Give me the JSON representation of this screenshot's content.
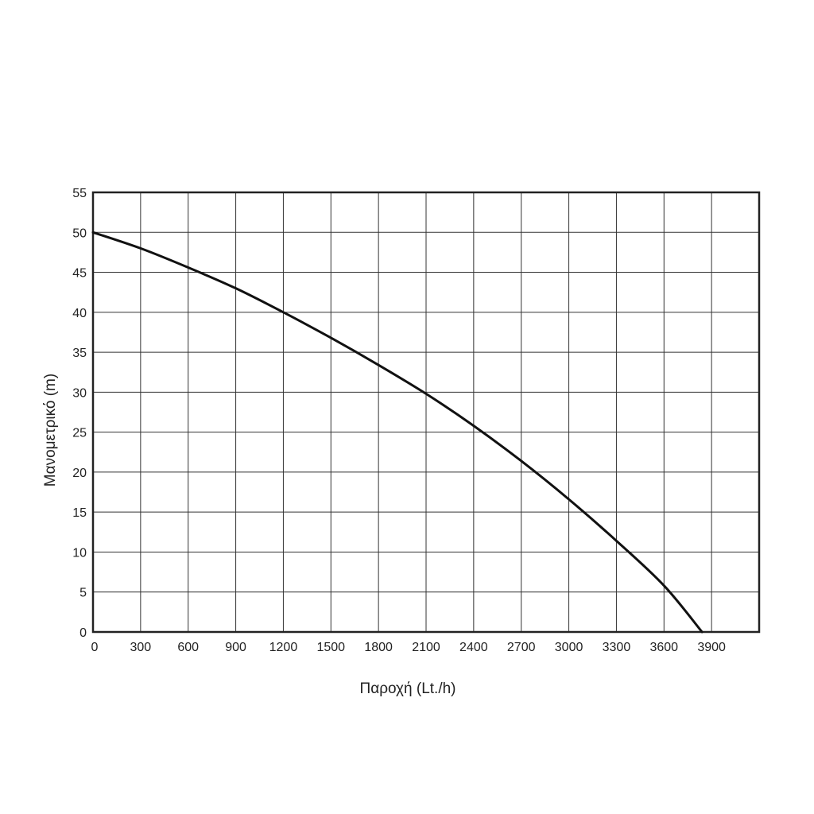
{
  "chart_data": {
    "type": "line",
    "title": "",
    "xlabel": "Παροχή (Lt./h)",
    "ylabel": "Μανομετρικό  (m)",
    "xlim": [
      0,
      4200
    ],
    "ylim": [
      0,
      55
    ],
    "x_ticks": [
      "0",
      "300",
      "600",
      "900",
      "1200",
      "1500",
      "1800",
      "2100",
      "2400",
      "2700",
      "3000",
      "3300",
      "3600",
      "3900"
    ],
    "y_ticks": [
      "0",
      "5",
      "10",
      "15",
      "20",
      "25",
      "30",
      "35",
      "40",
      "45",
      "50",
      "55"
    ],
    "grid": true,
    "legend": "none",
    "series": [
      {
        "x": [
          0,
          300,
          600,
          900,
          1200,
          1500,
          1800,
          2100,
          2400,
          2700,
          3000,
          3300,
          3600,
          3840
        ],
        "y": [
          50,
          48,
          45.6,
          43,
          40,
          36.8,
          33.4,
          29.8,
          25.8,
          21.4,
          16.6,
          11.4,
          5.8,
          0
        ],
        "color": "#111111"
      }
    ],
    "colors": {
      "grid": "#333333",
      "frame": "#222222",
      "line": "#111111",
      "text": "#222222"
    }
  }
}
